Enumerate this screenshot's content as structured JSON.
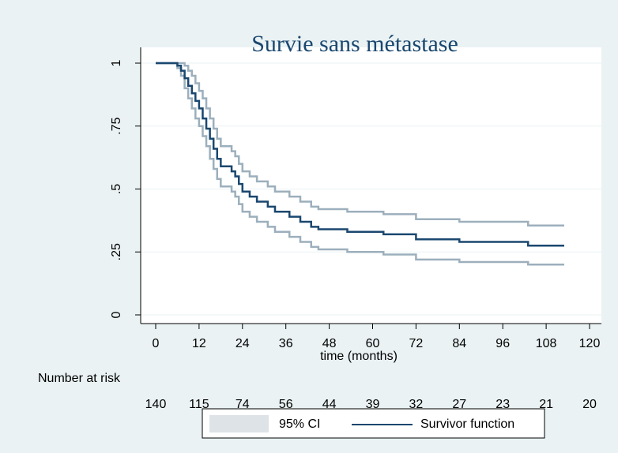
{
  "chart_data": {
    "type": "step",
    "title": "Survie sans métastase",
    "xlabel": "time (months)",
    "xlim": [
      0,
      120
    ],
    "xticks": [
      0,
      12,
      24,
      36,
      48,
      60,
      72,
      84,
      96,
      108,
      120
    ],
    "ylim": [
      0,
      1
    ],
    "yticks": [
      0,
      {
        "value": 0.25,
        "label": ".25"
      },
      {
        "value": 0.5,
        "label": ".5"
      },
      {
        "value": 0.75,
        "label": ".75"
      },
      1
    ],
    "grid": true,
    "x": [
      0,
      6,
      6,
      7,
      7,
      8,
      8,
      9,
      9,
      10,
      10,
      11,
      11,
      12,
      12,
      13,
      13,
      14,
      14,
      15,
      15,
      16,
      16,
      17,
      17,
      18,
      18,
      21,
      21,
      22,
      22,
      23,
      23,
      24,
      24,
      26,
      26,
      28,
      28,
      31,
      31,
      33,
      33,
      37,
      37,
      40,
      40,
      43,
      43,
      45,
      45,
      53,
      53,
      63,
      63,
      72,
      72,
      84,
      84,
      103,
      103,
      113
    ],
    "series": [
      {
        "name": "Survivor function",
        "color": "#1a476f",
        "values": [
          1,
          1,
          0.99,
          0.99,
          0.97,
          0.97,
          0.94,
          0.94,
          0.91,
          0.91,
          0.88,
          0.88,
          0.85,
          0.85,
          0.82,
          0.82,
          0.78,
          0.78,
          0.74,
          0.74,
          0.7,
          0.7,
          0.66,
          0.66,
          0.62,
          0.62,
          0.59,
          0.59,
          0.57,
          0.57,
          0.55,
          0.55,
          0.52,
          0.52,
          0.49,
          0.49,
          0.47,
          0.47,
          0.45,
          0.45,
          0.43,
          0.43,
          0.41,
          0.41,
          0.39,
          0.39,
          0.37,
          0.37,
          0.35,
          0.35,
          0.34,
          0.34,
          0.33,
          0.33,
          0.32,
          0.32,
          0.3,
          0.3,
          0.29,
          0.29,
          0.275,
          0.275
        ]
      }
    ],
    "ci": {
      "name": "95% CI",
      "color": "#9cafbc",
      "legend_color": "#dde3e7",
      "upper": [
        1,
        1,
        1,
        1,
        1,
        1,
        0.99,
        0.99,
        0.97,
        0.97,
        0.95,
        0.95,
        0.92,
        0.92,
        0.89,
        0.89,
        0.86,
        0.86,
        0.82,
        0.82,
        0.78,
        0.78,
        0.74,
        0.74,
        0.7,
        0.7,
        0.67,
        0.67,
        0.65,
        0.65,
        0.63,
        0.63,
        0.6,
        0.6,
        0.57,
        0.57,
        0.55,
        0.55,
        0.53,
        0.53,
        0.51,
        0.51,
        0.49,
        0.49,
        0.47,
        0.47,
        0.45,
        0.45,
        0.43,
        0.43,
        0.42,
        0.42,
        0.41,
        0.41,
        0.4,
        0.4,
        0.38,
        0.38,
        0.37,
        0.37,
        0.355,
        0.355
      ],
      "lower": [
        1,
        1,
        0.98,
        0.98,
        0.95,
        0.95,
        0.9,
        0.9,
        0.86,
        0.86,
        0.82,
        0.82,
        0.78,
        0.78,
        0.75,
        0.75,
        0.71,
        0.71,
        0.67,
        0.67,
        0.62,
        0.62,
        0.58,
        0.58,
        0.54,
        0.54,
        0.51,
        0.51,
        0.49,
        0.49,
        0.47,
        0.47,
        0.44,
        0.44,
        0.41,
        0.41,
        0.39,
        0.39,
        0.37,
        0.37,
        0.35,
        0.35,
        0.33,
        0.33,
        0.31,
        0.31,
        0.29,
        0.29,
        0.27,
        0.27,
        0.26,
        0.26,
        0.25,
        0.25,
        0.24,
        0.24,
        0.22,
        0.22,
        0.21,
        0.21,
        0.2,
        0.2
      ]
    },
    "risk_table": {
      "label": "Number at risk",
      "values": [
        140,
        115,
        74,
        56,
        44,
        39,
        32,
        27,
        23,
        21,
        20
      ]
    }
  }
}
